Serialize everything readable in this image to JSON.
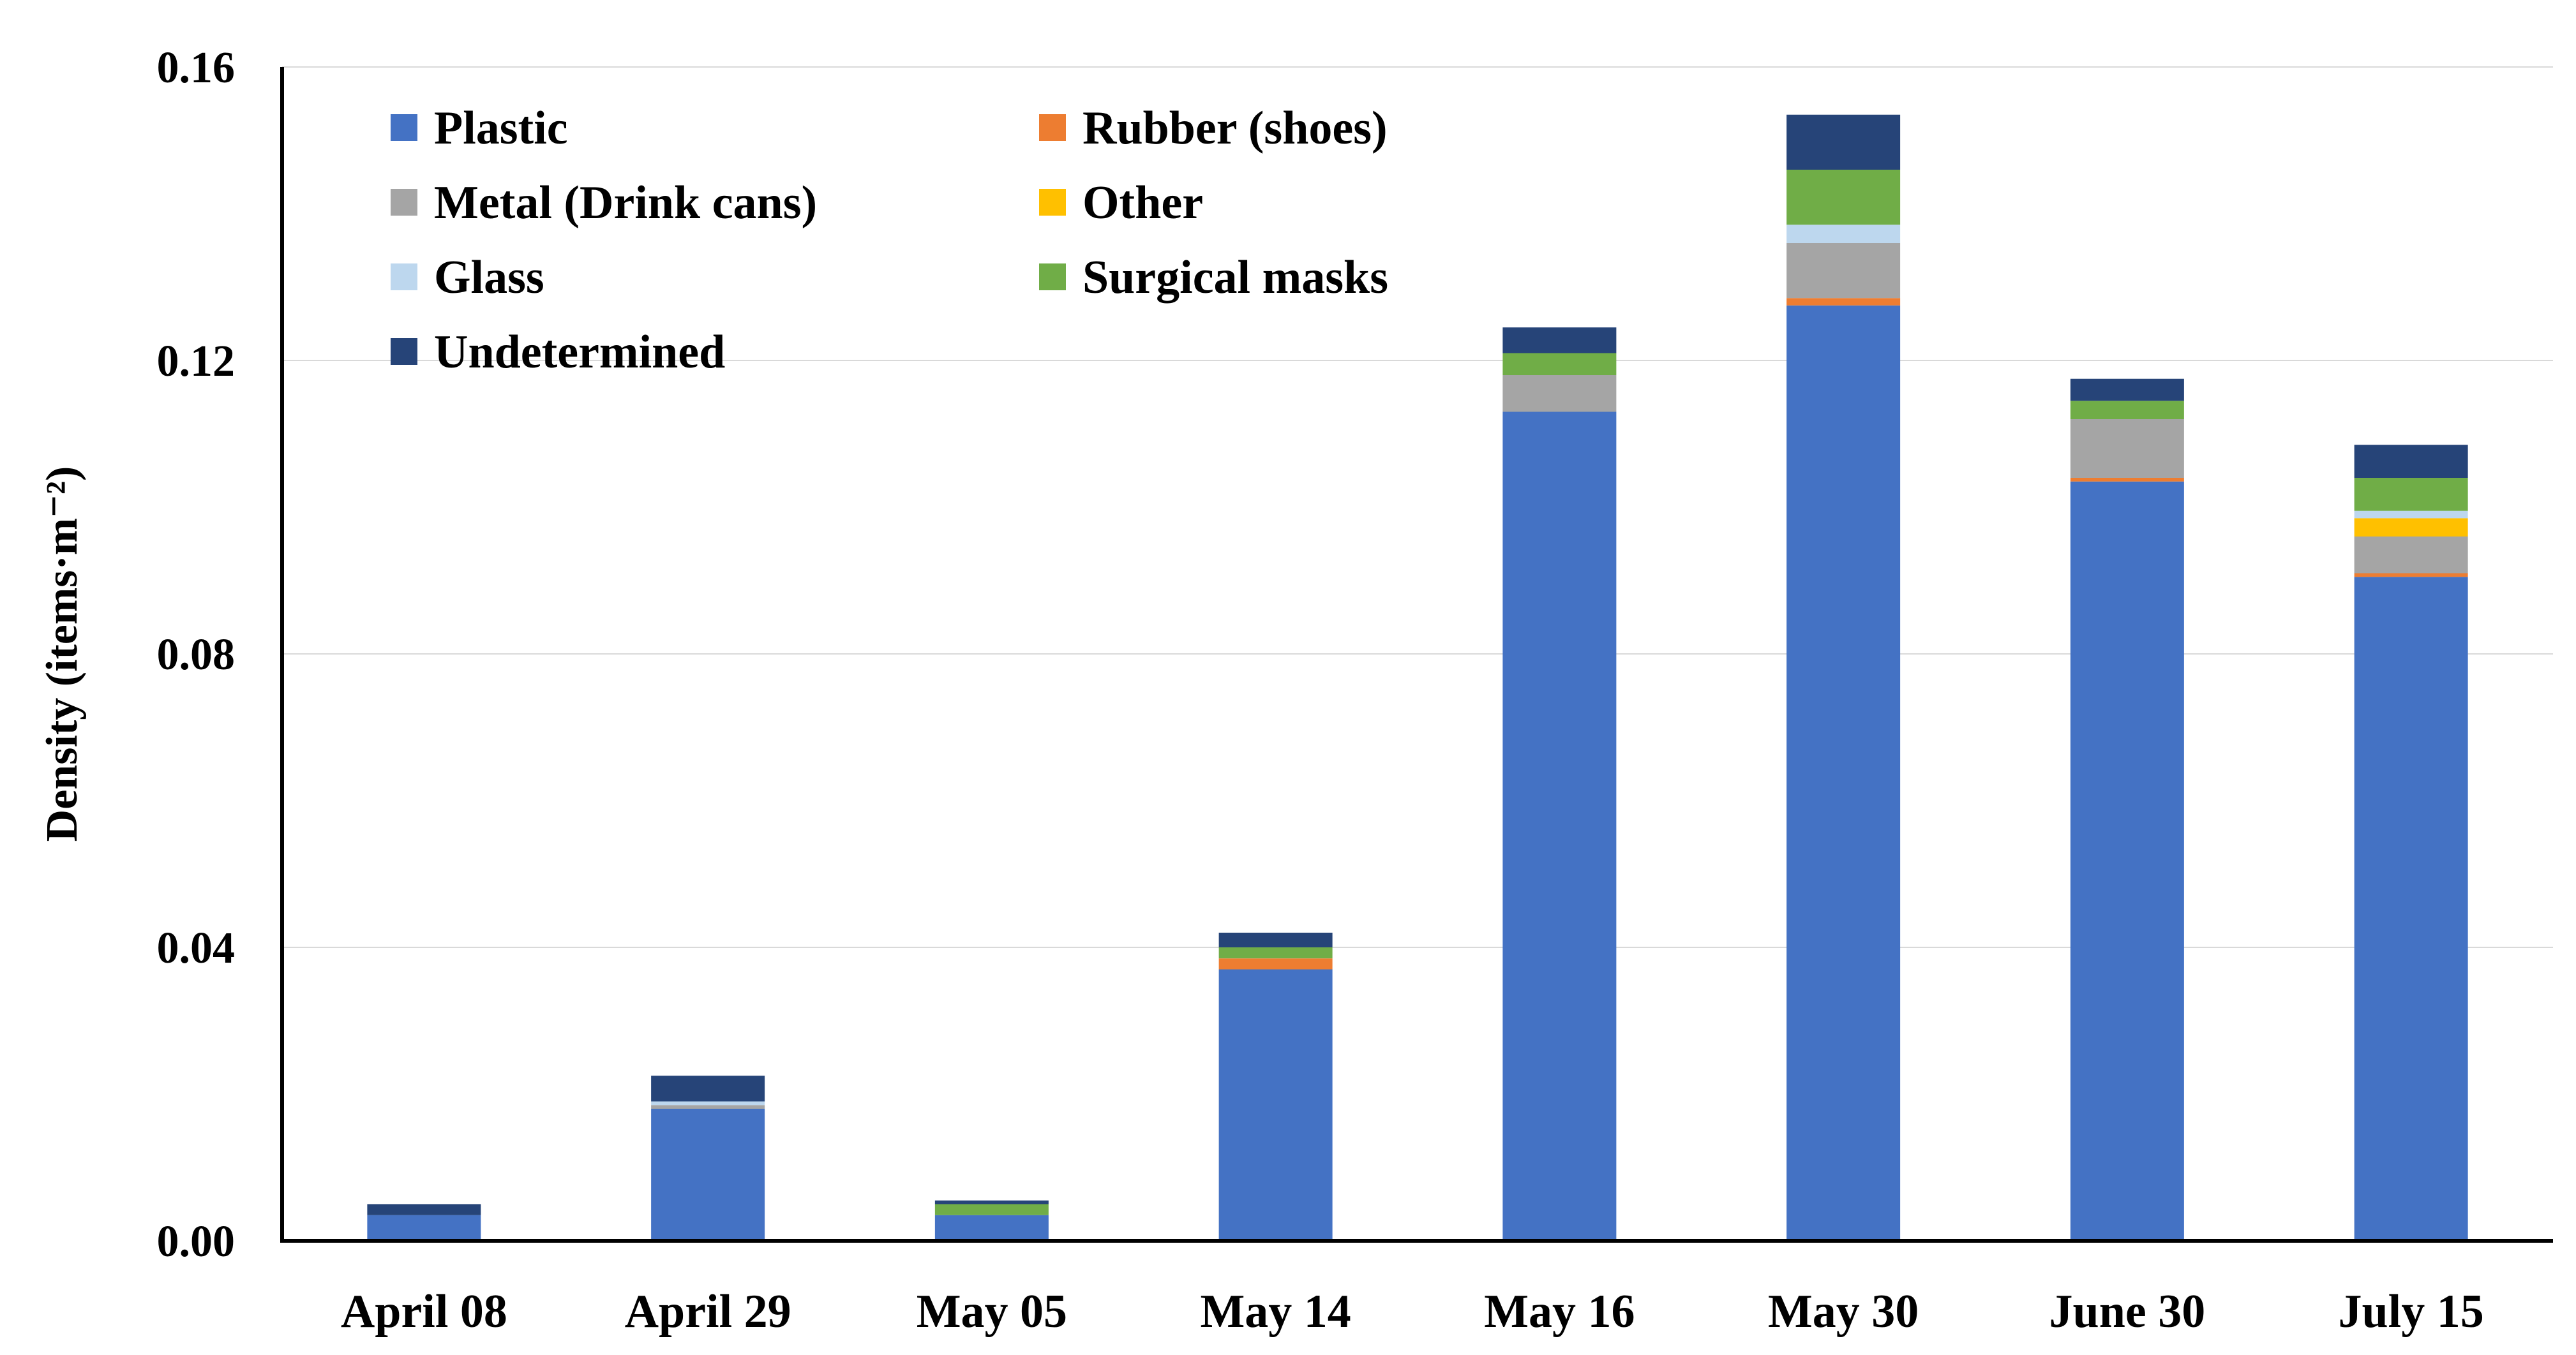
{
  "chart_data": {
    "type": "bar",
    "stacked": true,
    "title": "",
    "xlabel": "",
    "ylabel": "Density (items·m⁻²)",
    "ylim": [
      0,
      0.16
    ],
    "yticks": [
      "0.00",
      "0.04",
      "0.08",
      "0.12",
      "0.16"
    ],
    "grid": true,
    "legend_position": "top-left",
    "categories": [
      "April 08",
      "April 29",
      "May 05",
      "May 14",
      "May 16",
      "May 30",
      "June 30",
      "July 15"
    ],
    "series": [
      {
        "name": "Plastic",
        "color": "#4472C4",
        "values": [
          0.0035,
          0.018,
          0.0035,
          0.037,
          0.113,
          0.1275,
          0.1035,
          0.0905
        ]
      },
      {
        "name": "Rubber (shoes)",
        "color": "#ED7D31",
        "values": [
          0,
          0,
          0,
          0.0015,
          0,
          0.001,
          0.0005,
          0.0005
        ]
      },
      {
        "name": "Metal (Drink cans)",
        "color": "#A5A5A5",
        "values": [
          0,
          0.0005,
          0,
          0,
          0.005,
          0.0075,
          0.008,
          0.005
        ]
      },
      {
        "name": "Other",
        "color": "#FFC000",
        "values": [
          0,
          0,
          0,
          0,
          0,
          0,
          0,
          0.0025
        ]
      },
      {
        "name": "Glass",
        "color": "#BDD7EE",
        "values": [
          0,
          0.0005,
          0,
          0,
          0,
          0.0025,
          0,
          0.001
        ]
      },
      {
        "name": "Surgical masks",
        "color": "#70AD47",
        "values": [
          0,
          0,
          0.0015,
          0.0015,
          0.003,
          0.0075,
          0.0025,
          0.0045
        ]
      },
      {
        "name": "Undetermined",
        "color": "#264478",
        "values": [
          0.0015,
          0.0035,
          0.0005,
          0.002,
          0.0035,
          0.0075,
          0.003,
          0.0045
        ]
      }
    ]
  }
}
